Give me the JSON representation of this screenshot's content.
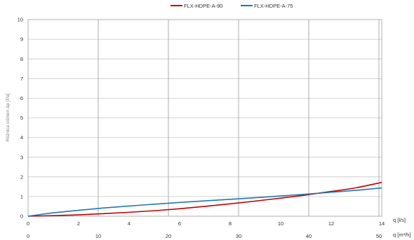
{
  "chart_data": {
    "type": "line",
    "title": "",
    "ylabel": "Różnica ciśnień Δp [Pa]",
    "xlabel_primary": "q [l/s]",
    "xlabel_secondary": "q [m³/h]",
    "legend_position": "top-center",
    "grid": true,
    "xlim": [
      0,
      14
    ],
    "ylim": [
      0,
      10
    ],
    "yticks": [
      "0",
      "1",
      "2",
      "3",
      "4",
      "5",
      "6",
      "7",
      "8",
      "9",
      "10"
    ],
    "xticks_primary": [
      "0",
      "2",
      "4",
      "6",
      "8",
      "10",
      "12",
      "14"
    ],
    "xticks_secondary": [
      "0",
      "10",
      "20",
      "30",
      "40",
      "50"
    ],
    "series": [
      {
        "name": "FLX-HDPE-A-90",
        "color": "#c00000",
        "x": [
          0,
          1,
          2,
          3,
          4,
          5,
          6,
          7,
          8,
          9,
          10,
          11,
          12,
          13,
          14
        ],
        "y": [
          0,
          0.03,
          0.07,
          0.13,
          0.2,
          0.28,
          0.38,
          0.5,
          0.63,
          0.77,
          0.92,
          1.08,
          1.26,
          1.45,
          1.72
        ]
      },
      {
        "name": "FLX-HDPE-A-75",
        "color": "#1f77b4",
        "x": [
          0,
          1,
          2,
          3,
          4,
          5,
          6,
          7,
          8,
          9,
          10,
          11,
          12,
          13,
          14
        ],
        "y": [
          0,
          0.17,
          0.3,
          0.42,
          0.52,
          0.61,
          0.7,
          0.78,
          0.86,
          0.94,
          1.03,
          1.12,
          1.22,
          1.32,
          1.44
        ]
      }
    ]
  }
}
